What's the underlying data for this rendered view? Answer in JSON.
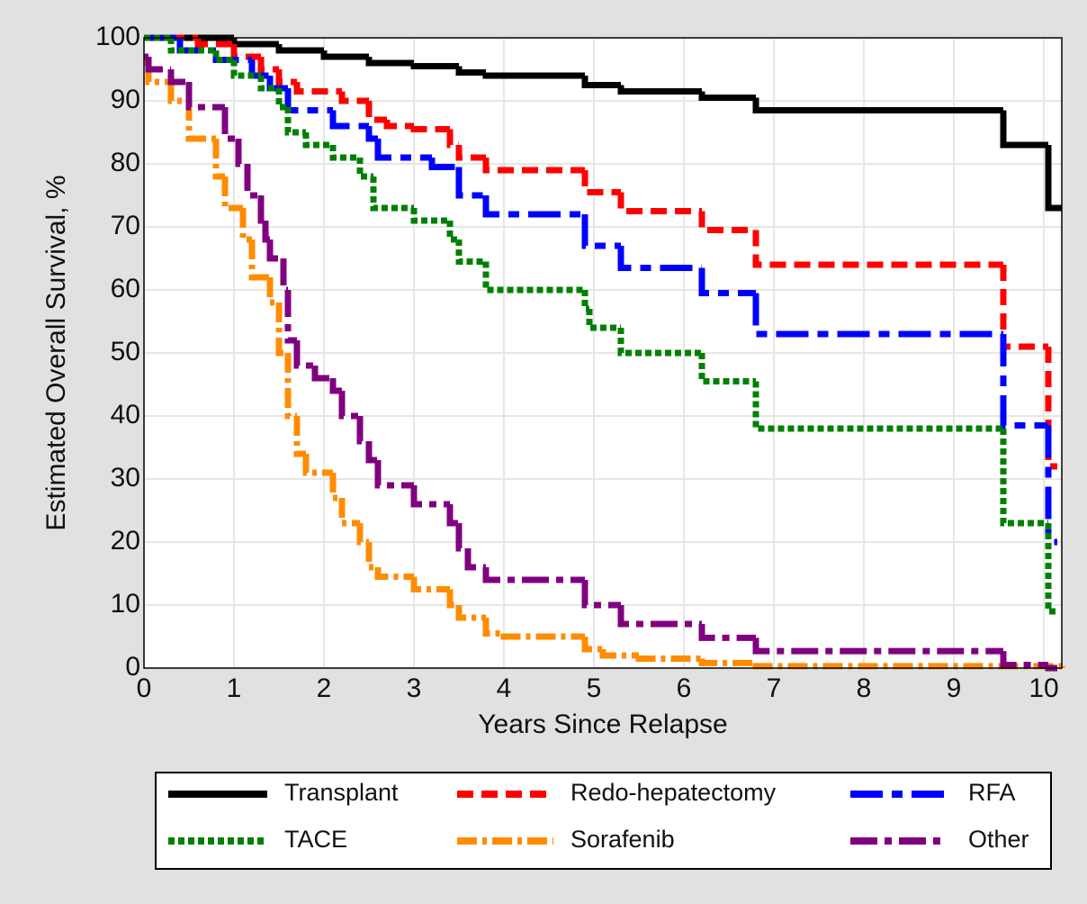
{
  "chart_data": {
    "type": "step",
    "xlabel": "Years Since Relapse",
    "ylabel": "Estimated Overall Survival, %",
    "xlim": [
      0,
      10.2
    ],
    "ylim": [
      0,
      100
    ],
    "xticks": [
      0,
      1,
      2,
      3,
      4,
      5,
      6,
      7,
      8,
      9,
      10
    ],
    "yticks": [
      0,
      10,
      20,
      30,
      40,
      50,
      60,
      70,
      80,
      90,
      100
    ],
    "grid": true,
    "legend": "bottom",
    "series": [
      {
        "name": "Transplant",
        "color": "#000000",
        "x": [
          0,
          0.5,
          1,
          1.5,
          2,
          2.5,
          3,
          3.5,
          3.8,
          4.9,
          5.3,
          6.2,
          6.8,
          9.55,
          10.05,
          10.2
        ],
        "values": [
          100,
          100,
          99,
          98,
          97,
          96,
          95.5,
          94.5,
          94,
          92.5,
          91.5,
          90.5,
          88.5,
          83,
          73,
          73
        ]
      },
      {
        "name": "Redo-hepatectomy",
        "color": "#ff0000",
        "x": [
          0,
          0.6,
          1,
          1.3,
          1.5,
          1.7,
          2.2,
          2.5,
          2.7,
          3,
          3.4,
          3.5,
          3.8,
          4.9,
          5.3,
          6.2,
          6.8,
          9.55,
          10.05,
          10.15
        ],
        "values": [
          100,
          99,
          97,
          95,
          93,
          91.5,
          90,
          87,
          86,
          85.5,
          83,
          81,
          79,
          75.5,
          72.5,
          69.5,
          64,
          51,
          32,
          32
        ]
      },
      {
        "name": "RFA",
        "color": "#0000ff",
        "x": [
          0,
          0.4,
          0.8,
          1.2,
          1.4,
          1.6,
          2.1,
          2.5,
          2.6,
          3.2,
          3.5,
          3.8,
          4.9,
          5.3,
          6.2,
          6.8,
          9.55,
          10.05,
          10.15
        ],
        "values": [
          100,
          98,
          96.5,
          94,
          92,
          88.5,
          86,
          84,
          81,
          79.5,
          75,
          72,
          67,
          63.5,
          59.5,
          53,
          38.5,
          20,
          20
        ]
      },
      {
        "name": "TACE",
        "color": "#008000",
        "x": [
          0,
          0.3,
          0.8,
          1,
          1.3,
          1.5,
          1.6,
          1.8,
          2.1,
          2.4,
          2.55,
          3,
          3.4,
          3.5,
          3.8,
          4.9,
          4.95,
          5.3,
          6.2,
          6.8,
          9.55,
          10.05,
          10.15
        ],
        "values": [
          100,
          98,
          96.5,
          94,
          92,
          89,
          85,
          83,
          81,
          78,
          73,
          71,
          68,
          64.5,
          60,
          57,
          54,
          50,
          45.5,
          38,
          23,
          9,
          9
        ]
      },
      {
        "name": "Sorafenib",
        "color": "#ff8c00",
        "x": [
          0,
          0.05,
          0.3,
          0.5,
          0.8,
          0.9,
          1.1,
          1.2,
          1.4,
          1.5,
          1.6,
          1.7,
          1.8,
          2.1,
          2.2,
          2.4,
          2.5,
          2.6,
          3,
          3.4,
          3.5,
          3.8,
          4,
          4.9,
          5.1,
          5.5,
          6.2,
          6.8,
          10.2
        ],
        "values": [
          96,
          93,
          90,
          84,
          78,
          73,
          68,
          62,
          58,
          50,
          40,
          34,
          31,
          27,
          23,
          20,
          16,
          14.5,
          12.5,
          10,
          8,
          5.5,
          5,
          3,
          2,
          1.5,
          0.8,
          0.3,
          0
        ]
      },
      {
        "name": "Other",
        "color": "#800080",
        "x": [
          0,
          0.05,
          0.3,
          0.5,
          0.9,
          1.05,
          1.15,
          1.3,
          1.35,
          1.4,
          1.55,
          1.6,
          1.7,
          1.9,
          2.1,
          2.2,
          2.4,
          2.5,
          2.6,
          3,
          3.4,
          3.5,
          3.6,
          3.8,
          4.9,
          5.3,
          6.2,
          6.8,
          9.55,
          10.05,
          10.15
        ],
        "values": [
          97,
          95,
          93,
          89,
          84,
          80,
          75,
          71,
          68,
          65,
          60,
          52,
          48,
          46,
          44,
          40,
          36,
          33,
          29,
          26,
          23,
          19,
          16,
          14,
          10,
          7,
          4.8,
          2.7,
          0.5,
          0,
          0
        ]
      }
    ]
  }
}
